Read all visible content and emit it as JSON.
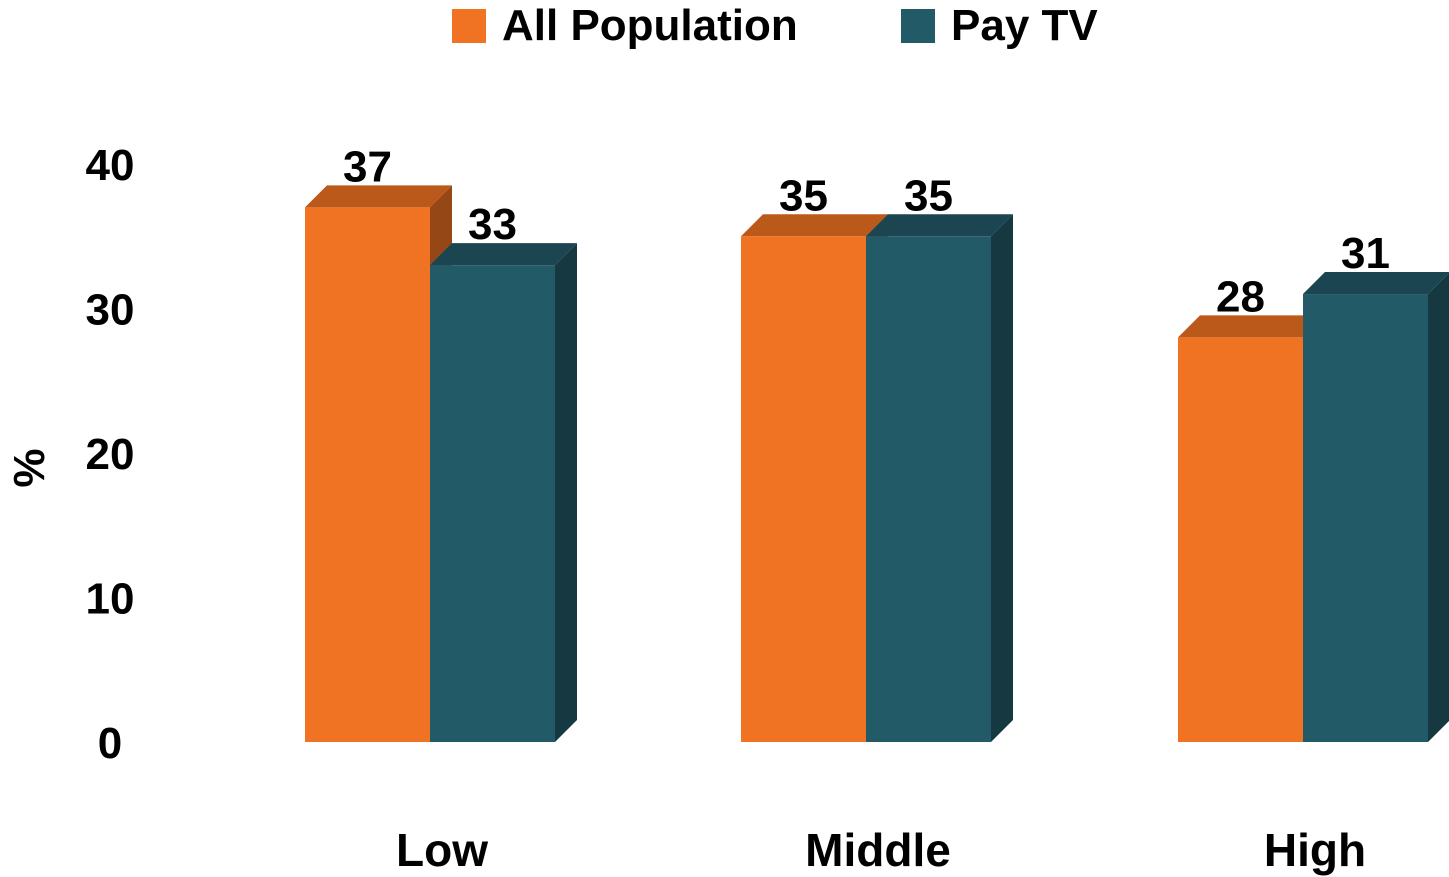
{
  "chart_data": {
    "type": "bar",
    "categories": [
      "Low",
      "Middle",
      "High"
    ],
    "series": [
      {
        "name": "All Population",
        "values": [
          37,
          35,
          28
        ],
        "color": "#F07223"
      },
      {
        "name": "Pay TV",
        "values": [
          33,
          35,
          31
        ],
        "color": "#235A68"
      }
    ],
    "ylabel": "%",
    "xlabel": "",
    "ylim": [
      0,
      40
    ],
    "yticks": [
      "0",
      "10",
      "20",
      "30",
      "40"
    ],
    "data_labels": [
      [
        "37",
        "33"
      ],
      [
        "35",
        "35"
      ],
      [
        "28",
        "31"
      ]
    ],
    "legend_position": "top",
    "grid": false,
    "style": "3d-bars"
  }
}
